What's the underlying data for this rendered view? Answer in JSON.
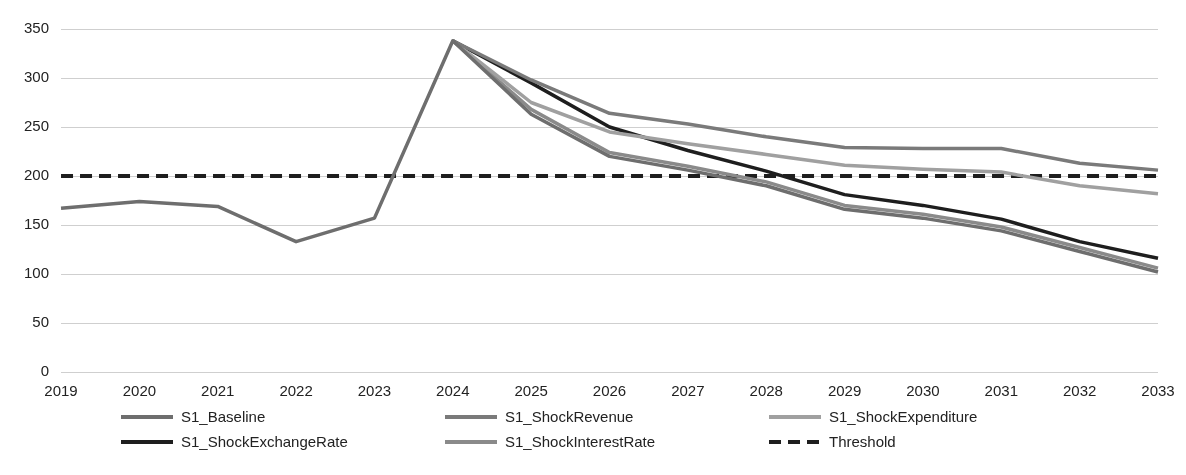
{
  "chart_data": {
    "type": "line",
    "categories": [
      "2019",
      "2020",
      "2021",
      "2022",
      "2023",
      "2024",
      "2025",
      "2026",
      "2027",
      "2028",
      "2029",
      "2030",
      "2031",
      "2032",
      "2033"
    ],
    "series": [
      {
        "name": "S1_Baseline",
        "color": "#6e6e6e",
        "values": [
          167,
          174,
          169,
          133,
          157,
          338,
          263,
          220,
          206,
          190,
          166,
          157,
          144,
          123,
          102
        ]
      },
      {
        "name": "S1_ShockRevenue",
        "color": "#7a7a7a",
        "values": [
          null,
          null,
          null,
          null,
          null,
          338,
          298,
          264,
          253,
          240,
          229,
          228,
          228,
          213,
          206
        ]
      },
      {
        "name": "S1_ShockExpenditure",
        "color": "#a0a0a0",
        "values": [
          null,
          null,
          null,
          null,
          null,
          338,
          275,
          245,
          233,
          222,
          211,
          207,
          204,
          190,
          182
        ]
      },
      {
        "name": "S1_ShockExchangeRate",
        "color": "#1e1e1e",
        "values": [
          null,
          null,
          null,
          null,
          null,
          338,
          295,
          250,
          226,
          205,
          181,
          170,
          156,
          133,
          116
        ]
      },
      {
        "name": "S1_ShockInterestRate",
        "color": "#8a8a8a",
        "values": [
          null,
          null,
          null,
          null,
          null,
          338,
          268,
          224,
          210,
          194,
          170,
          161,
          148,
          127,
          106
        ]
      },
      {
        "name": "Threshold",
        "color": "#1e1e1e",
        "line_style": "dashed",
        "values": [
          200,
          200,
          200,
          200,
          200,
          200,
          200,
          200,
          200,
          200,
          200,
          200,
          200,
          200,
          200
        ]
      }
    ],
    "ylim": [
      0,
      350
    ],
    "yticks": [
      0,
      50,
      100,
      150,
      200,
      250,
      300,
      350
    ],
    "grid": "y",
    "legend": "bottom",
    "marker": "none"
  }
}
